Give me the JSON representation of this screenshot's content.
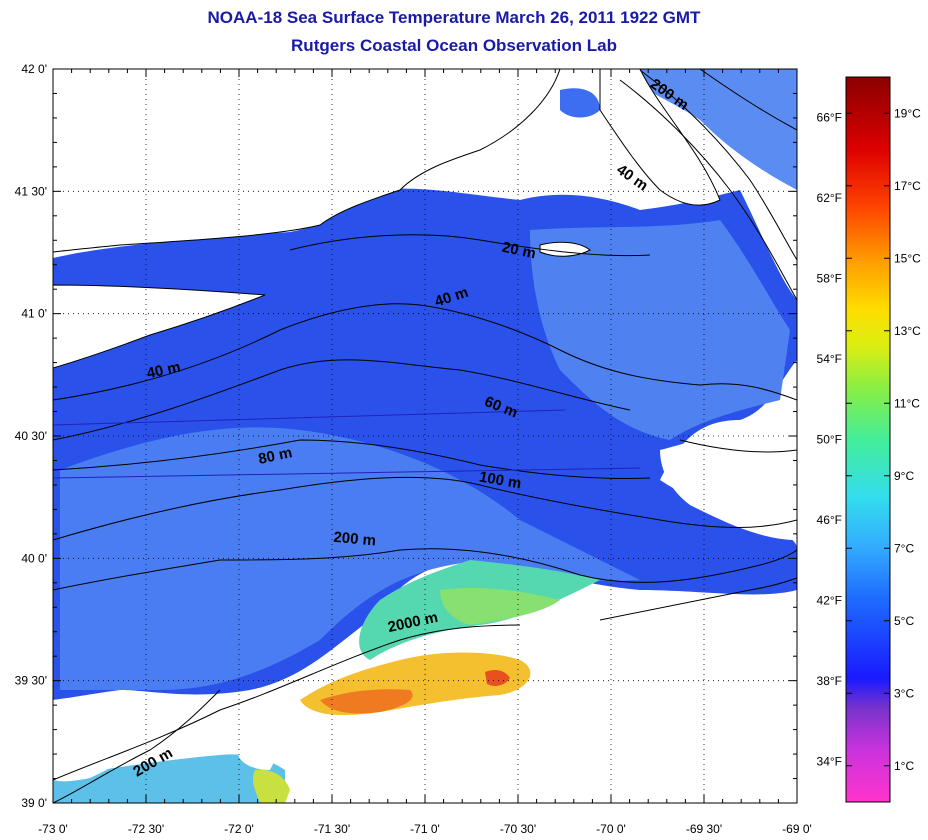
{
  "title": "NOAA-18 Sea Surface Temperature March 26, 2011 1922 GMT",
  "subtitle": "Rutgers Coastal Ocean Observation Lab",
  "map": {
    "lon_range": [
      -73.0,
      -69.0
    ],
    "lat_range": [
      39.0,
      42.0
    ],
    "x_ticks": [
      "-73 0'",
      "-72 30'",
      "-72 0'",
      "-71 30'",
      "-71 0'",
      "-70 30'",
      "-70 0'",
      "-69 30'",
      "-69 0'"
    ],
    "y_ticks": [
      "42 0'",
      "41 30'",
      "41 0'",
      "40 30'",
      "40 0'",
      "39 30'",
      "39 0'"
    ],
    "grid": "dotted",
    "contour_labels": [
      {
        "text": "200 m",
        "lon": -69.7,
        "lat": 41.88
      },
      {
        "text": "40 m",
        "lon": -69.9,
        "lat": 41.54
      },
      {
        "text": "20 m",
        "lon": -70.5,
        "lat": 41.24
      },
      {
        "text": "40 m",
        "lon": -70.85,
        "lat": 41.05
      },
      {
        "text": "40 m",
        "lon": -72.4,
        "lat": 40.75
      },
      {
        "text": "60 m",
        "lon": -70.6,
        "lat": 40.6
      },
      {
        "text": "80 m",
        "lon": -71.8,
        "lat": 40.4
      },
      {
        "text": "100 m",
        "lon": -70.6,
        "lat": 40.3
      },
      {
        "text": "200 m",
        "lon": -71.38,
        "lat": 40.06
      },
      {
        "text": "2000 m",
        "lon": -71.06,
        "lat": 39.72
      },
      {
        "text": "200 m",
        "lon": -72.45,
        "lat": 39.15
      }
    ]
  },
  "colorbar": {
    "celsius_labels": [
      "19°C",
      "17°C",
      "15°C",
      "13°C",
      "11°C",
      "9°C",
      "7°C",
      "5°C",
      "3°C",
      "1°C"
    ],
    "fahrenheit_labels": [
      "66°F",
      "62°F",
      "58°F",
      "54°F",
      "50°F",
      "46°F",
      "42°F",
      "38°F",
      "34°F"
    ],
    "range_c": [
      0,
      20
    ],
    "colors": [
      "#ff33cc",
      "#8833cc",
      "#2020ff",
      "#1e6bff",
      "#33aaff",
      "#33ddee",
      "#44ee88",
      "#aaee33",
      "#ffee00",
      "#ffaa00",
      "#ff4400",
      "#e00000",
      "#8b0000"
    ]
  }
}
